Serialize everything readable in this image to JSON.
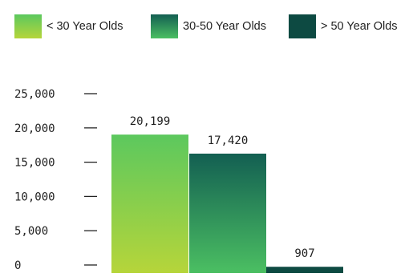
{
  "legend": [
    {
      "label": "< 30 Year Olds",
      "swatch": "sw-a"
    },
    {
      "label": "30-50 Year Olds",
      "swatch": "sw-b"
    },
    {
      "label": "> 50 Year Olds",
      "swatch": "sw-c"
    }
  ],
  "chart_data": {
    "type": "bar",
    "categories": [
      "< 30 Year Olds",
      "30-50 Year Olds",
      "> 50 Year Olds"
    ],
    "values": [
      20199,
      17420,
      907
    ],
    "data_labels": [
      "20,199",
      "17,420",
      "907"
    ],
    "ylim": [
      0,
      25000
    ],
    "yticks": [
      0,
      5000,
      10000,
      15000,
      20000,
      25000
    ],
    "ytick_labels": [
      "0",
      "5,000",
      "10,000",
      "15,000",
      "20,000",
      "25,000"
    ],
    "grid": false,
    "legend_position": "top",
    "colors": {
      "bar1_top": "#5cc85e",
      "bar1_bottom": "#b6d53a",
      "bar2_top": "#135f52",
      "bar2_bottom": "#4bbf62",
      "bar3": "#0d4a42"
    }
  }
}
